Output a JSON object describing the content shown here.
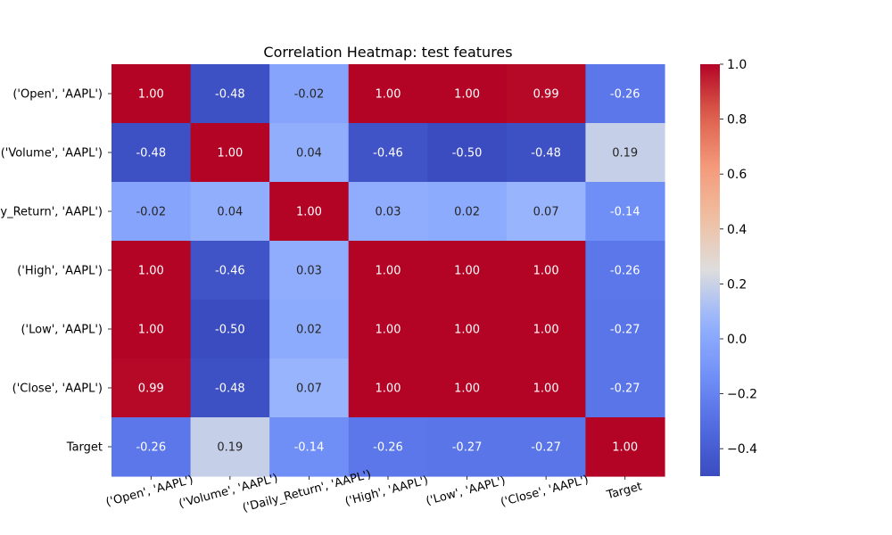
{
  "chart_data": {
    "type": "heatmap",
    "title": "Correlation Heatmap: test features",
    "row_labels": [
      "('Open', 'AAPL')",
      "('Volume', 'AAPL')",
      "('Daily_Return', 'AAPL')",
      "('High', 'AAPL')",
      "('Low', 'AAPL')",
      "('Close', 'AAPL')",
      "Target"
    ],
    "col_labels": [
      "('Open', 'AAPL')",
      "('Volume', 'AAPL')",
      "('Daily_Return', 'AAPL')",
      "('High', 'AAPL')",
      "('Low', 'AAPL')",
      "('Close', 'AAPL')",
      "Target"
    ],
    "values": [
      [
        1.0,
        -0.48,
        -0.02,
        1.0,
        1.0,
        0.99,
        -0.26
      ],
      [
        -0.48,
        1.0,
        0.04,
        -0.46,
        -0.5,
        -0.48,
        0.19
      ],
      [
        -0.02,
        0.04,
        1.0,
        0.03,
        0.02,
        0.07,
        -0.14
      ],
      [
        1.0,
        -0.46,
        0.03,
        1.0,
        1.0,
        1.0,
        -0.26
      ],
      [
        1.0,
        -0.5,
        0.02,
        1.0,
        1.0,
        1.0,
        -0.27
      ],
      [
        0.99,
        -0.48,
        0.07,
        1.0,
        1.0,
        1.0,
        -0.27
      ],
      [
        -0.26,
        0.19,
        -0.14,
        -0.26,
        -0.27,
        -0.27,
        1.0
      ]
    ],
    "value_format": "0.00",
    "colormap": "coolwarm",
    "vmin": -0.5,
    "vmax": 1.0,
    "colorbar_ticks": [
      -0.4,
      -0.2,
      0.0,
      0.2,
      0.4,
      0.6,
      0.8,
      1.0
    ],
    "colorbar_tick_labels": [
      "−0.4",
      "−0.2",
      "0.0",
      "0.2",
      "0.4",
      "0.6",
      "0.8",
      "1.0"
    ]
  }
}
